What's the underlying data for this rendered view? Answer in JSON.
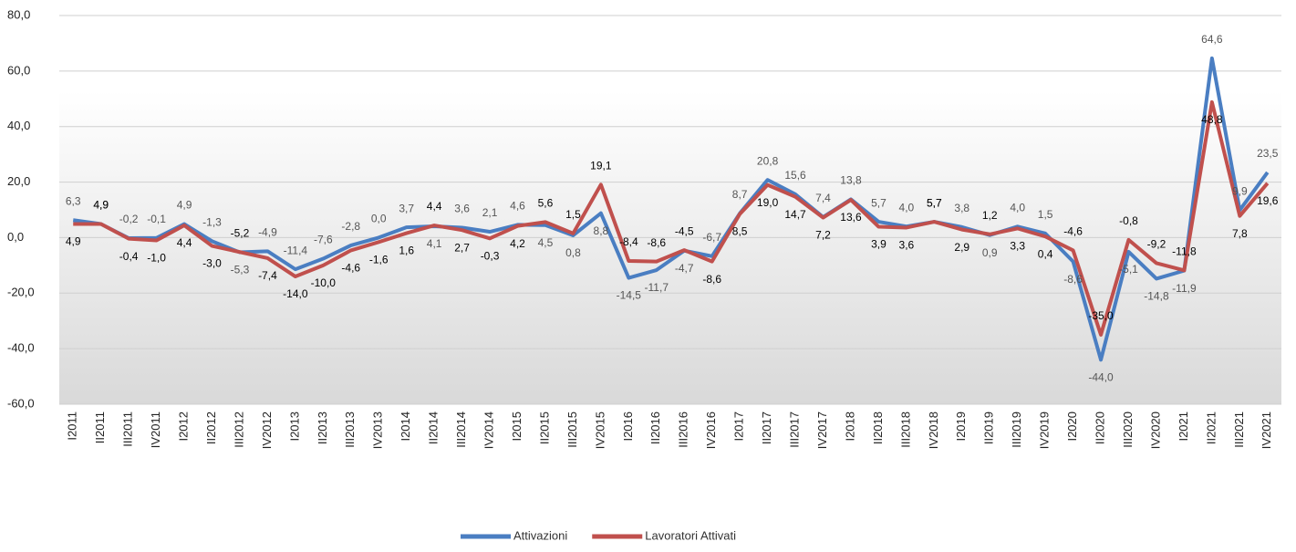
{
  "chart_data": {
    "type": "line",
    "categories": [
      "I2011",
      "II2011",
      "III2011",
      "IV2011",
      "I2012",
      "II2012",
      "III2012",
      "IV2012",
      "I2013",
      "II2013",
      "III2013",
      "IV2013",
      "I2014",
      "II2014",
      "III2014",
      "IV2014",
      "I2015",
      "II2015",
      "III2015",
      "IV2015",
      "I2016",
      "II2016",
      "III2016",
      "IV2016",
      "I2017",
      "II2017",
      "III2017",
      "IV2017",
      "I2018",
      "II2018",
      "III2018",
      "IV2018",
      "I2019",
      "II2019",
      "III2019",
      "IV2019",
      "I2020",
      "II2020",
      "III2020",
      "IV2020",
      "I2021",
      "II2021",
      "III2021",
      "IV2021"
    ],
    "series": [
      {
        "name": "Attivazioni",
        "color": "#4a7ec2",
        "label_color": "#555555",
        "values": [
          6.3,
          4.9,
          -0.2,
          -0.1,
          4.9,
          -1.3,
          -5.3,
          -4.9,
          -11.4,
          -7.6,
          -2.8,
          0.0,
          3.7,
          4.1,
          3.6,
          2.1,
          4.6,
          4.5,
          0.8,
          8.8,
          -14.5,
          -11.7,
          -4.7,
          -6.7,
          8.7,
          20.8,
          15.6,
          7.4,
          13.8,
          5.7,
          4.0,
          5.7,
          3.8,
          0.9,
          4.0,
          1.5,
          -8.6,
          -44.0,
          -5.1,
          -14.8,
          -11.9,
          64.6,
          9.9,
          23.5
        ],
        "value_labels": [
          "6,3",
          "4,9",
          "-0,2",
          "-0,1",
          "4,9",
          "-1,3",
          "-5,3",
          "-4,9",
          "-11,4",
          "-7,6",
          "-2,8",
          "0,0",
          "3,7",
          "4,1",
          "3,6",
          "2,1",
          "4,6",
          "4,5",
          "0,8",
          "8,8",
          "-14,5",
          "-11,7",
          "-4,7",
          "-6,7",
          "8,7",
          "20,8",
          "15,6",
          "7,4",
          "13,8",
          "5,7",
          "4,0",
          "5,7",
          "3,8",
          "0,9",
          "4,0",
          "1,5",
          "-8,6",
          "-44,0",
          "-5,1",
          "-14,8",
          "-11,9",
          "64,6",
          "9,9",
          "23,5"
        ]
      },
      {
        "name": "Lavoratori Attivati",
        "color": "#c0504d",
        "label_color": "#000000",
        "values": [
          4.9,
          4.9,
          -0.4,
          -1.0,
          4.4,
          -3.0,
          -5.2,
          -7.4,
          -14.0,
          -10.0,
          -4.6,
          -1.6,
          1.6,
          4.4,
          2.7,
          -0.3,
          4.2,
          5.6,
          1.5,
          19.1,
          -8.4,
          -8.6,
          -4.5,
          -8.6,
          8.5,
          19.0,
          14.7,
          7.2,
          13.6,
          3.9,
          3.6,
          5.7,
          2.9,
          1.2,
          3.3,
          0.4,
          -4.6,
          -35.0,
          -0.8,
          -9.2,
          -11.8,
          48.8,
          7.8,
          19.6
        ],
        "value_labels": [
          "4,9",
          "4,9",
          "-0,4",
          "-1,0",
          "4,4",
          "-3,0",
          "-5,2",
          "-7,4",
          "-14,0",
          "-10,0",
          "-4,6",
          "-1,6",
          "1,6",
          "4,4",
          "2,7",
          "-0,3",
          "4,2",
          "5,6",
          "1,5",
          "19,1",
          "-8,4",
          "-8,6",
          "-4,5",
          "-8,6",
          "8,5",
          "19,0",
          "14,7",
          "7,2",
          "13,6",
          "3,9",
          "3,6",
          "5,7",
          "2,9",
          "1,2",
          "3,3",
          "0,4",
          "-4,6",
          "-35,0",
          "-0,8",
          "-9,2",
          "-11,8",
          "48,8",
          "7,8",
          "19,6"
        ]
      }
    ],
    "ylim": [
      -60,
      80
    ],
    "yticks": [
      {
        "value": -60,
        "label": "-60,0"
      },
      {
        "value": -40,
        "label": "-40,0"
      },
      {
        "value": -20,
        "label": "-20,0"
      },
      {
        "value": 0,
        "label": "0,0"
      },
      {
        "value": 20,
        "label": "20,0"
      },
      {
        "value": 40,
        "label": "40,0"
      },
      {
        "value": 60,
        "label": "60,0"
      },
      {
        "value": 80,
        "label": "80,0"
      }
    ],
    "grid": true,
    "legend": "bottom"
  }
}
